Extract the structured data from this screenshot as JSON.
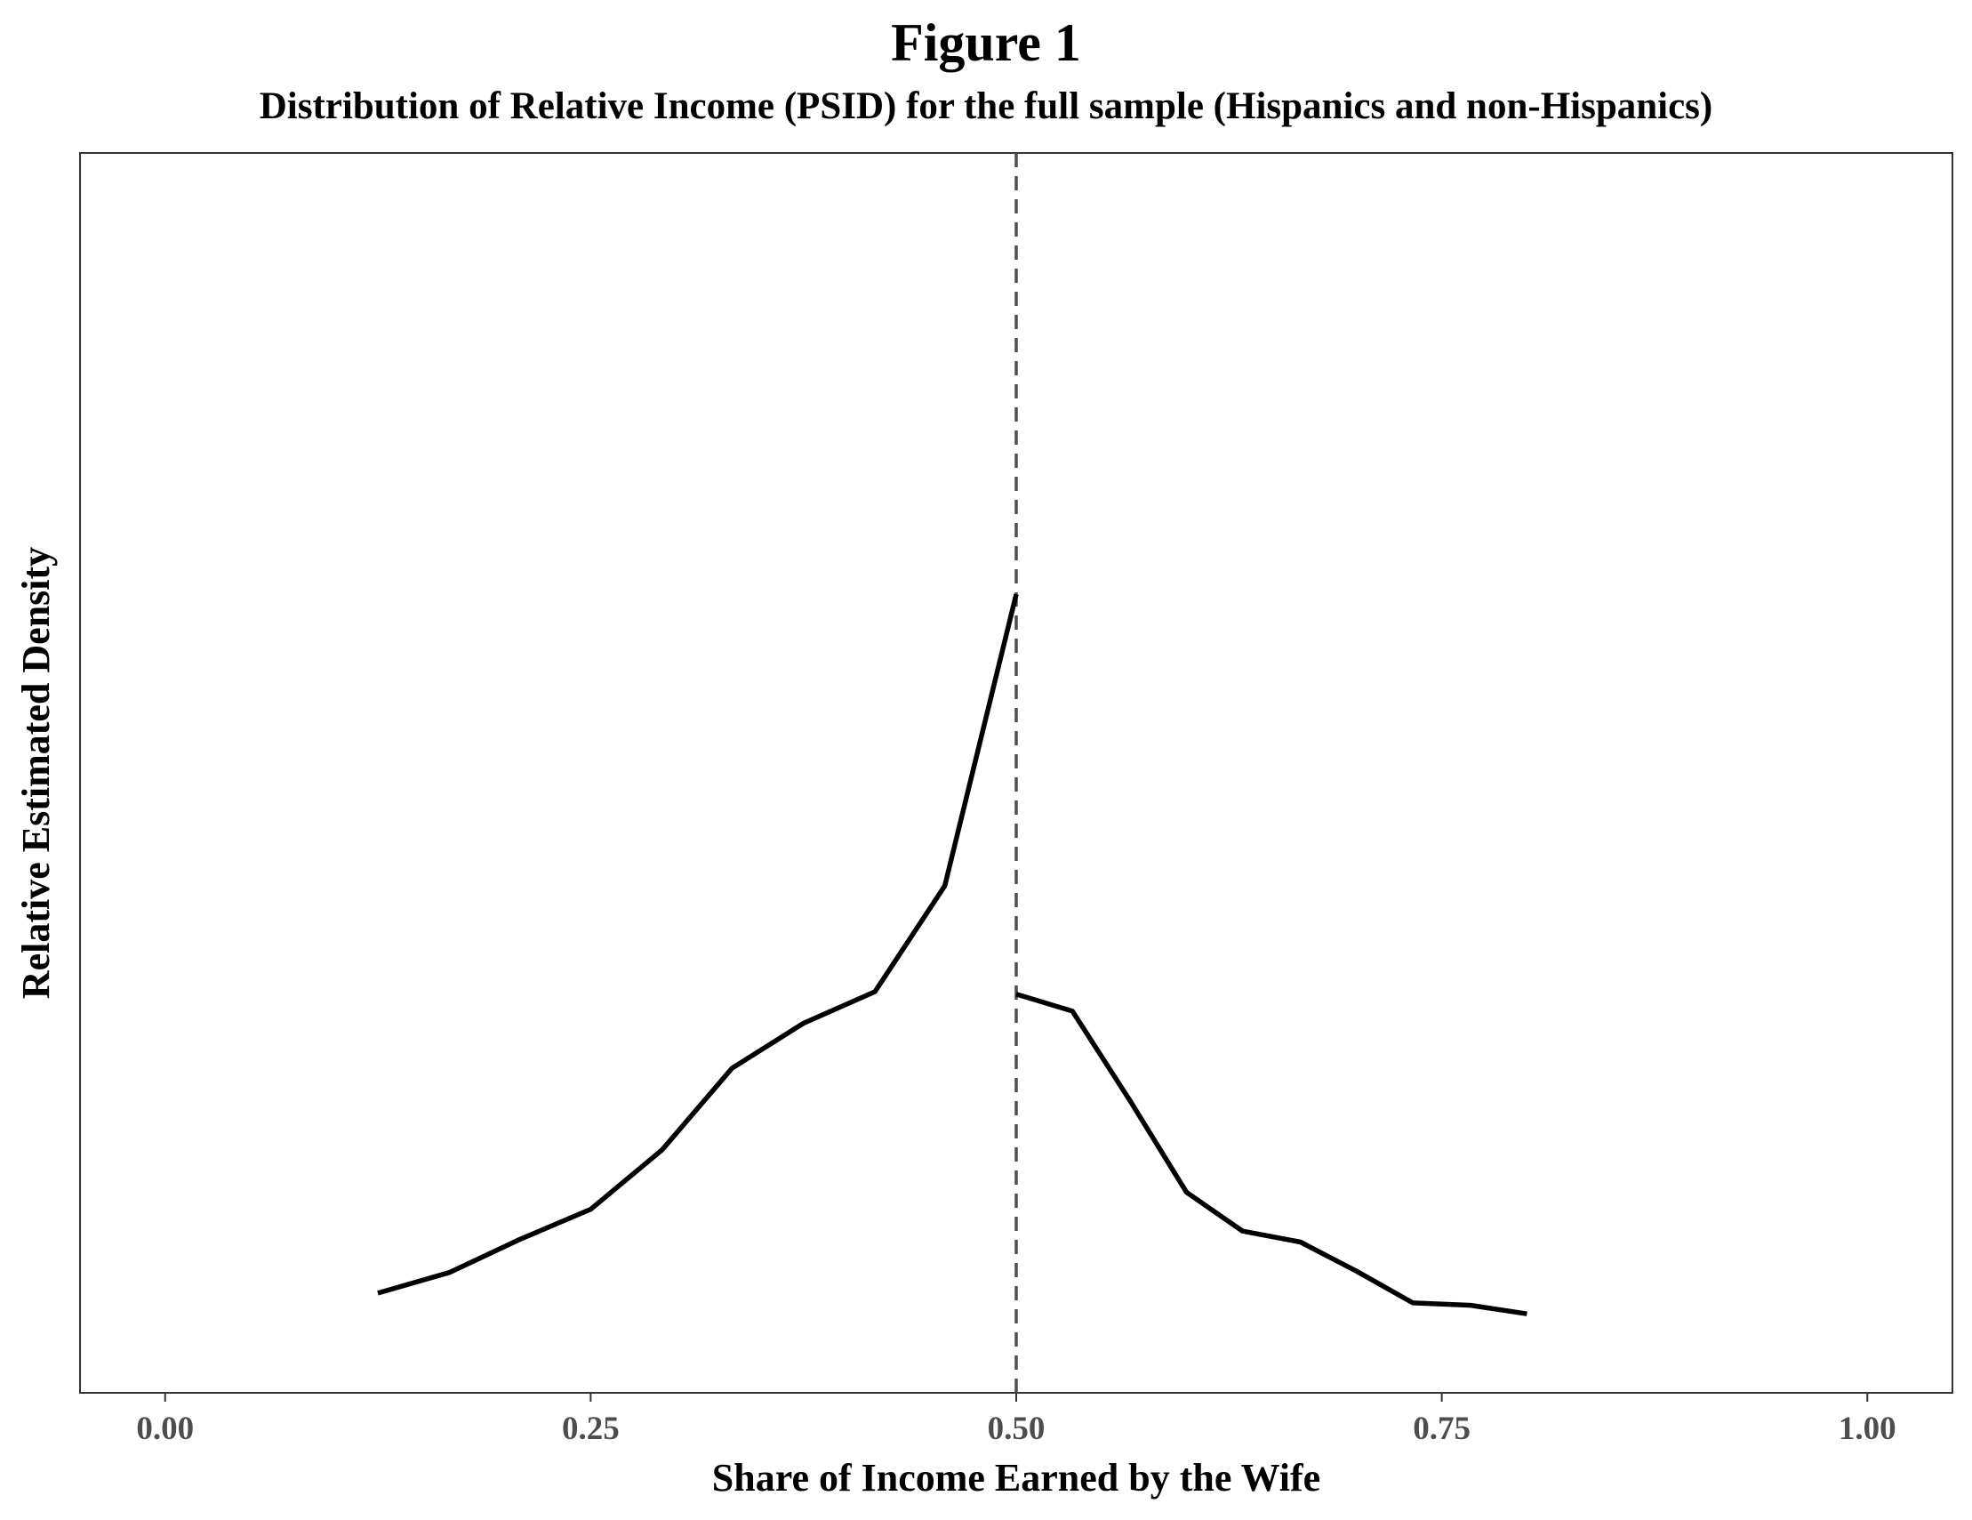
{
  "figure": {
    "title": "Figure 1",
    "subtitle": "Distribution of Relative Income (PSID) for the full sample (Hispanics and non-Hispanics)"
  },
  "chart_data": {
    "type": "line",
    "title": "Figure 1",
    "subtitle": "Distribution of Relative Income (PSID) for the full sample (Hispanics and non-Hispanics)",
    "xlabel": "Share of Income Earned by the Wife",
    "ylabel": "Relative Estimated Density",
    "xlim": [
      -0.05,
      1.05
    ],
    "ylim": [
      0,
      1.02
    ],
    "x_ticks": [
      0.0,
      0.25,
      0.5,
      0.75,
      1.0
    ],
    "x_tick_labels": [
      "0.00",
      "0.25",
      "0.50",
      "0.75",
      "1.00"
    ],
    "y_ticks_shown": false,
    "grid": false,
    "vline": {
      "x": 0.5,
      "style": "dashed",
      "color": "#4d4d4d"
    },
    "series": [
      {
        "segment": "below",
        "color": "#000000",
        "x": [
          0.125,
          0.167,
          0.208,
          0.25,
          0.292,
          0.333,
          0.375,
          0.417,
          0.458,
          0.5
        ],
        "y": [
          0.082,
          0.099,
          0.126,
          0.151,
          0.2,
          0.267,
          0.304,
          0.33,
          0.417,
          0.657
        ]
      },
      {
        "segment": "above",
        "color": "#000000",
        "x": [
          0.5,
          0.533,
          0.567,
          0.6,
          0.633,
          0.667,
          0.7,
          0.733,
          0.767,
          0.8
        ],
        "y": [
          0.328,
          0.314,
          0.24,
          0.165,
          0.133,
          0.124,
          0.1,
          0.074,
          0.072,
          0.065
        ]
      }
    ]
  }
}
